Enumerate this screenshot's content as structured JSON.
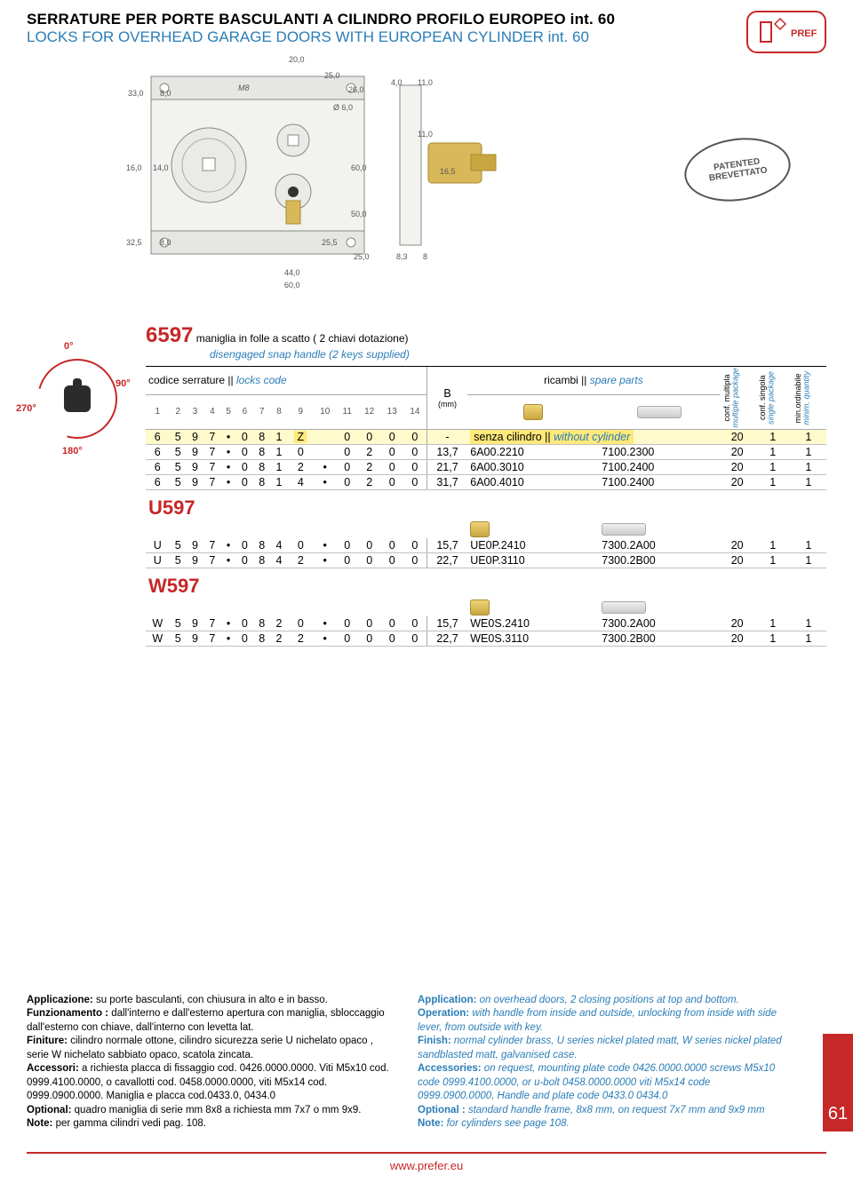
{
  "header": {
    "title_it": "SERRATURE PER PORTE BASCULANTI A CILINDRO PROFILO EUROPEO int. 60",
    "title_en": "LOCKS FOR OVERHEAD GARAGE DOORS WITH EUROPEAN CYLINDER int. 60",
    "logo_text": "PREFER"
  },
  "diagram": {
    "dims": [
      "20,0",
      "25,0",
      "33,0",
      "8,0",
      "M8",
      "26,0",
      "4,0",
      "11,0",
      "Ø 6,0",
      "16,0",
      "14,0",
      "60,0",
      "11,0",
      "16,5",
      "50,0",
      "32,5",
      "8,0",
      "25,5",
      "25,0",
      "8,3",
      "8",
      "44,0",
      "60,0"
    ],
    "stamp": "PATENTED\nBREVETTATO"
  },
  "rotation": {
    "deg_0": "0°",
    "deg_90": "90°",
    "deg_180": "180°",
    "deg_270": "270°"
  },
  "series": {
    "code": "6597",
    "desc_it": "maniglia in folle a scatto ( 2 chiavi dotazione)",
    "desc_en": "disengaged snap handle (2 keys supplied)"
  },
  "table": {
    "hdr_locks_it": "codice serrature ||",
    "hdr_locks_en": "locks code",
    "hdr_spare_it": "ricambi ||",
    "hdr_spare_en": "spare parts",
    "hdr_B": "B",
    "hdr_B_unit": "(mm)",
    "col_nums": [
      "1",
      "2",
      "3",
      "4",
      "5",
      "6",
      "7",
      "8",
      "9",
      "10",
      "11",
      "12",
      "13",
      "14"
    ],
    "vcol1_it": "conf. multipla",
    "vcol1_en": "multiple package",
    "vcol2_it": "conf. singola",
    "vcol2_en": "single package",
    "vcol3_it": "min.ordinabile",
    "vcol3_en": "minim. quantity",
    "rows6597": [
      {
        "c": [
          "6",
          "5",
          "9",
          "7",
          "•",
          "0",
          "8",
          "1",
          "Z",
          "",
          "0",
          "0",
          "0",
          "0"
        ],
        "b": "-",
        "sp1": "senza cilindro || without cylinder",
        "sp2": "",
        "m": "20",
        "s": "1",
        "q": "1",
        "hl": true,
        "z": true
      },
      {
        "c": [
          "6",
          "5",
          "9",
          "7",
          "•",
          "0",
          "8",
          "1",
          "0",
          "",
          "0",
          "2",
          "0",
          "0"
        ],
        "b": "13,7",
        "sp1": "6A00.2210",
        "sp2": "7100.2300",
        "m": "20",
        "s": "1",
        "q": "1"
      },
      {
        "c": [
          "6",
          "5",
          "9",
          "7",
          "•",
          "0",
          "8",
          "1",
          "2",
          "•",
          "0",
          "2",
          "0",
          "0"
        ],
        "b": "21,7",
        "sp1": "6A00.3010",
        "sp2": "7100.2400",
        "m": "20",
        "s": "1",
        "q": "1"
      },
      {
        "c": [
          "6",
          "5",
          "9",
          "7",
          "•",
          "0",
          "8",
          "1",
          "4",
          "•",
          "0",
          "2",
          "0",
          "0"
        ],
        "b": "31,7",
        "sp1": "6A00.4010",
        "sp2": "7100.2400",
        "m": "20",
        "s": "1",
        "q": "1"
      }
    ],
    "sectU": "U597",
    "rowsU": [
      {
        "c": [
          "U",
          "5",
          "9",
          "7",
          "•",
          "0",
          "8",
          "4",
          "0",
          "•",
          "0",
          "0",
          "0",
          "0"
        ],
        "b": "15,7",
        "sp1": "UE0P.2410",
        "sp2": "7300.2A00",
        "m": "20",
        "s": "1",
        "q": "1"
      },
      {
        "c": [
          "U",
          "5",
          "9",
          "7",
          "•",
          "0",
          "8",
          "4",
          "2",
          "•",
          "0",
          "0",
          "0",
          "0"
        ],
        "b": "22,7",
        "sp1": "UE0P.3110",
        "sp2": "7300.2B00",
        "m": "20",
        "s": "1",
        "q": "1"
      }
    ],
    "sectW": "W597",
    "rowsW": [
      {
        "c": [
          "W",
          "5",
          "9",
          "7",
          "•",
          "0",
          "8",
          "2",
          "0",
          "•",
          "0",
          "0",
          "0",
          "0"
        ],
        "b": "15,7",
        "sp1": "WE0S.2410",
        "sp2": "7300.2A00",
        "m": "20",
        "s": "1",
        "q": "1"
      },
      {
        "c": [
          "W",
          "5",
          "9",
          "7",
          "•",
          "0",
          "8",
          "2",
          "2",
          "•",
          "0",
          "0",
          "0",
          "0"
        ],
        "b": "22,7",
        "sp1": "WE0S.3110",
        "sp2": "7300.2B00",
        "m": "20",
        "s": "1",
        "q": "1"
      }
    ]
  },
  "bottom": {
    "it": {
      "l1": "Applicazione:",
      "t1": " su porte basculanti, con chiusura in alto e in basso.",
      "l2": "Funzionamento :",
      "t2": " dall'interno e dall'esterno apertura con maniglia, sbloccaggio dall'esterno con chiave, dall'interno con levetta lat.",
      "l3": "Finiture:",
      "t3": " cilindro normale ottone, cilindro sicurezza serie U nichelato opaco , serie W nichelato sabbiato opaco, scatola zincata.",
      "l4": "Accessori:",
      "t4": " a richiesta placca di fissaggio cod. 0426.0000.0000. Viti M5x10 cod. 0999.4100.0000, o cavallotti cod. 0458.0000.0000, viti M5x14 cod. 0999.0900.0000. Maniglia e placca cod.0433.0, 0434.0",
      "l5": "Optional:",
      "t5": " quadro maniglia di serie mm 8x8 a richiesta mm 7x7 o mm 9x9.",
      "l6": "Note:",
      "t6": " per gamma cilindri vedi pag. 108."
    },
    "en": {
      "l1": "Application:",
      "t1": " on overhead doors, 2 closing positions at top and bottom.",
      "l2": "Operation:",
      "t2": " with handle from inside and outside, unlocking from inside with side lever, from outside with key.",
      "l3": "Finish:",
      "t3": " normal cylinder brass, U series nickel plated matt, W series nickel plated sandblasted matt, galvanised case.",
      "l4": "Accessories:",
      "t4": " on request, mounting plate code 0426.0000.0000 screws M5x10 code 0999.4100.0000, or u-bolt 0458.0000.0000 viti M5x14 code 0999.0900.0000, Handle and plate  code 0433.0 0434.0",
      "l5": "Optional :",
      "t5": " standard handle frame, 8x8 mm, on request 7x7 mm and 9x9 mm",
      "l6": "Note:",
      "t6": " for cylinders see page 108."
    }
  },
  "page_number": "61",
  "footer_url": "www.prefer.eu"
}
